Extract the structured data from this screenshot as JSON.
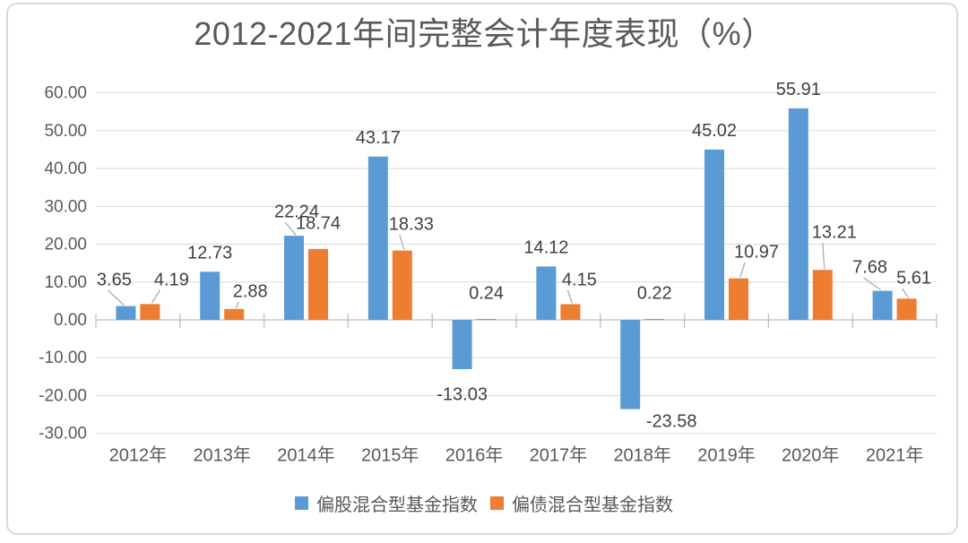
{
  "chart_data": {
    "type": "bar",
    "title": "2012-2021年间完整会计年度表现（%）",
    "categories": [
      "2012年",
      "2013年",
      "2014年",
      "2015年",
      "2016年",
      "2017年",
      "2018年",
      "2019年",
      "2020年",
      "2021年"
    ],
    "series": [
      {
        "name": "偏股混合型基金指数",
        "color": "#5B9BD5",
        "values": [
          3.65,
          12.73,
          22.24,
          43.17,
          -13.03,
          14.12,
          -23.58,
          45.02,
          55.91,
          7.68
        ]
      },
      {
        "name": "偏债混合型基金指数",
        "color": "#ED7D31",
        "values": [
          4.19,
          2.88,
          18.74,
          18.33,
          0.24,
          4.15,
          0.22,
          10.97,
          13.21,
          5.61
        ]
      }
    ],
    "ylim": [
      -30,
      60
    ],
    "ytick_step": 10,
    "ytick_labels": [
      "60.00",
      "50.00",
      "40.00",
      "30.00",
      "20.00",
      "10.00",
      "0.00",
      "-10.00",
      "-20.00",
      "-30.00"
    ],
    "value_decimals": 2,
    "grid": true,
    "legend_position": "bottom",
    "colors": {
      "gridline": "#d9d9d9",
      "axis_line": "#bfbfbf",
      "axis_text": "#595959",
      "data_label_text": "#404040",
      "leader_line": "#a6a6a6",
      "title_text": "#595959",
      "card_border": "#d9d9d9"
    }
  }
}
